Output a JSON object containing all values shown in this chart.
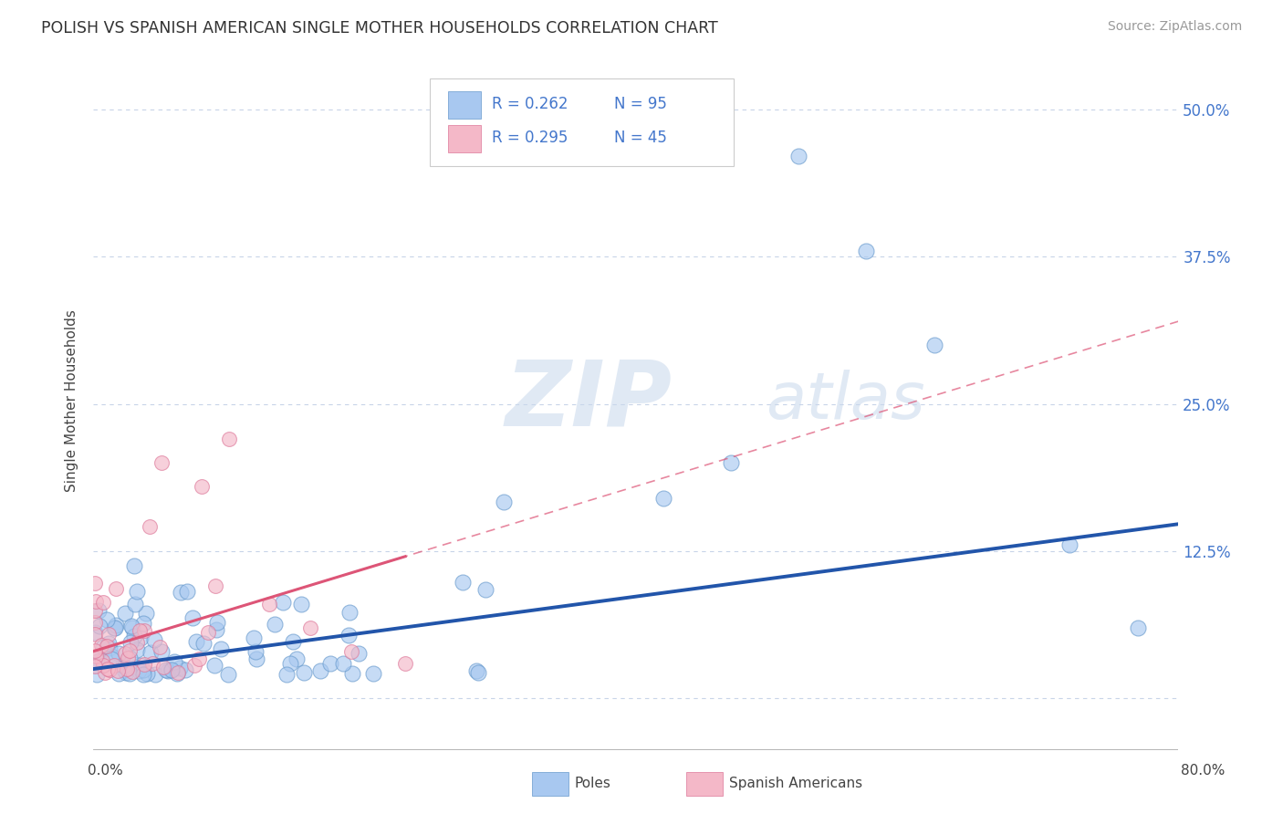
{
  "title": "POLISH VS SPANISH AMERICAN SINGLE MOTHER HOUSEHOLDS CORRELATION CHART",
  "source": "Source: ZipAtlas.com",
  "ylabel": "Single Mother Households",
  "ytick_values": [
    0.0,
    0.125,
    0.25,
    0.375,
    0.5
  ],
  "ytick_labels": [
    "",
    "12.5%",
    "25.0%",
    "37.5%",
    "50.0%"
  ],
  "xlim": [
    0.0,
    0.8
  ],
  "ylim": [
    -0.045,
    0.55
  ],
  "background_color": "#ffffff",
  "poles_color": "#a8c8f0",
  "poles_edge_color": "#6699cc",
  "spanish_color": "#f4b8c8",
  "spanish_edge_color": "#dd7799",
  "trendline_poles_color": "#2255aa",
  "trendline_spanish_color": "#dd5577",
  "grid_color": "#c8d4e8",
  "title_color": "#333333",
  "source_color": "#999999",
  "ytick_color": "#4477cc",
  "legend_text_color": "#4477cc",
  "legend_r_color": "#333333"
}
